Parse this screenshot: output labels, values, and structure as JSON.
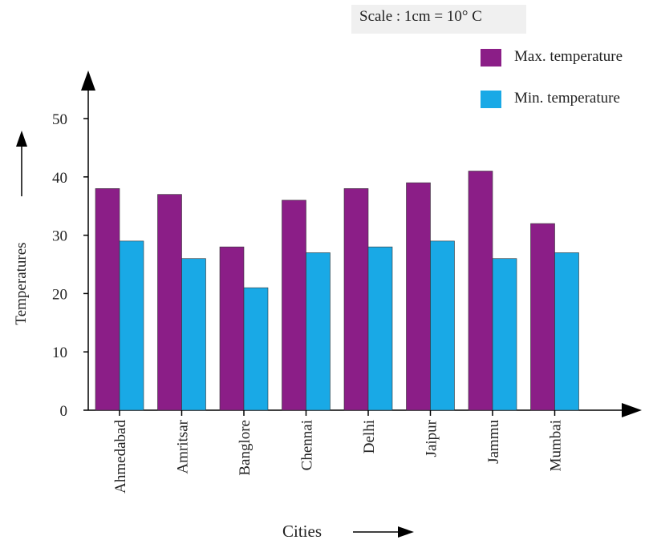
{
  "chart_data": {
    "type": "bar",
    "scale_note": "Scale : 1cm = 10° C",
    "categories": [
      "Ahmedabad",
      "Amritsar",
      "Banglore",
      "Chennai",
      "Delhi",
      "Jaipur",
      "Jammu",
      "Mumbai"
    ],
    "series": [
      {
        "name": "Max. temperature",
        "color": "#8b1e87",
        "values": [
          38,
          37,
          28,
          36,
          38,
          39,
          41,
          32
        ]
      },
      {
        "name": "Min. temperature",
        "color": "#19a9e6",
        "values": [
          29,
          26,
          21,
          27,
          28,
          29,
          26,
          27
        ]
      }
    ],
    "xlabel": "Cities",
    "ylabel": "Temperatures",
    "ylim": [
      0,
      50
    ],
    "yticks": [
      0,
      10,
      20,
      30,
      40,
      50
    ],
    "grid": false,
    "legend_position": "top-right"
  }
}
